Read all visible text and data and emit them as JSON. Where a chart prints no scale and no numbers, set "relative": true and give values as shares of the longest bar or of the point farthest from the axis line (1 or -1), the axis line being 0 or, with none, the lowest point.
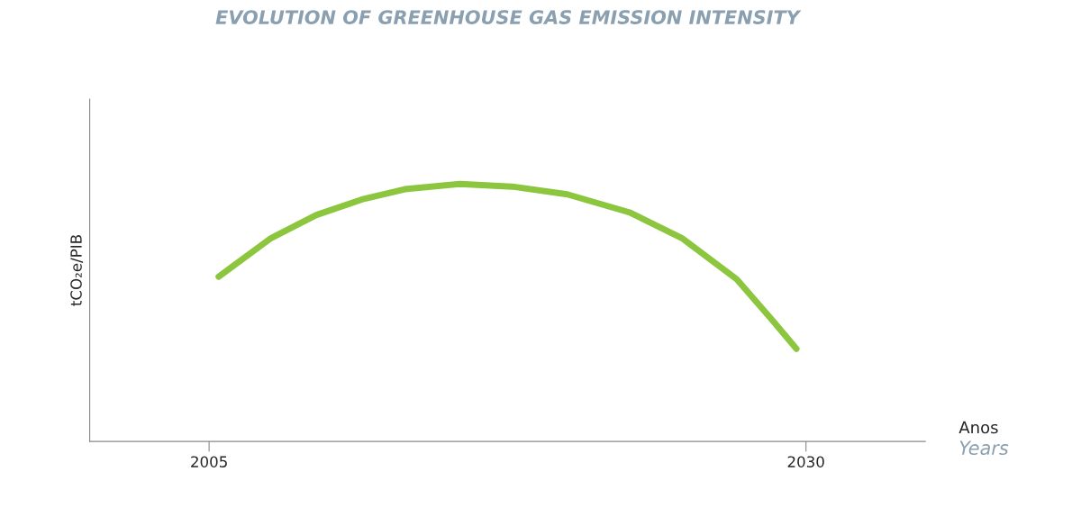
{
  "chart_data": {
    "type": "line",
    "title": "EVOLUTION OF GREENHOUSE GAS EMISSION INTENSITY",
    "xlabel": "Anos",
    "ylabel": "tCO₂e/PIB",
    "annotations": [
      "Years"
    ],
    "relative": true,
    "x": [
      2005.4,
      2007.6,
      2009.5,
      2011.4,
      2013.2,
      2015.5,
      2017.7,
      2020.0,
      2022.6,
      2024.8,
      2027.1,
      2028.6,
      2029.6
    ],
    "series": [
      {
        "color": "#8cc63f",
        "values": [
          0.64,
          0.79,
          0.88,
          0.94,
          0.98,
          1,
          0.99,
          0.96,
          0.89,
          0.79,
          0.63,
          0.47,
          0.36
        ]
      }
    ],
    "xlim": [
      2000,
      2035
    ],
    "xticks": [
      2005,
      2030
    ],
    "tick_labels": "x",
    "grid": false,
    "legend": false,
    "marker": "none",
    "line_style": "solid"
  }
}
